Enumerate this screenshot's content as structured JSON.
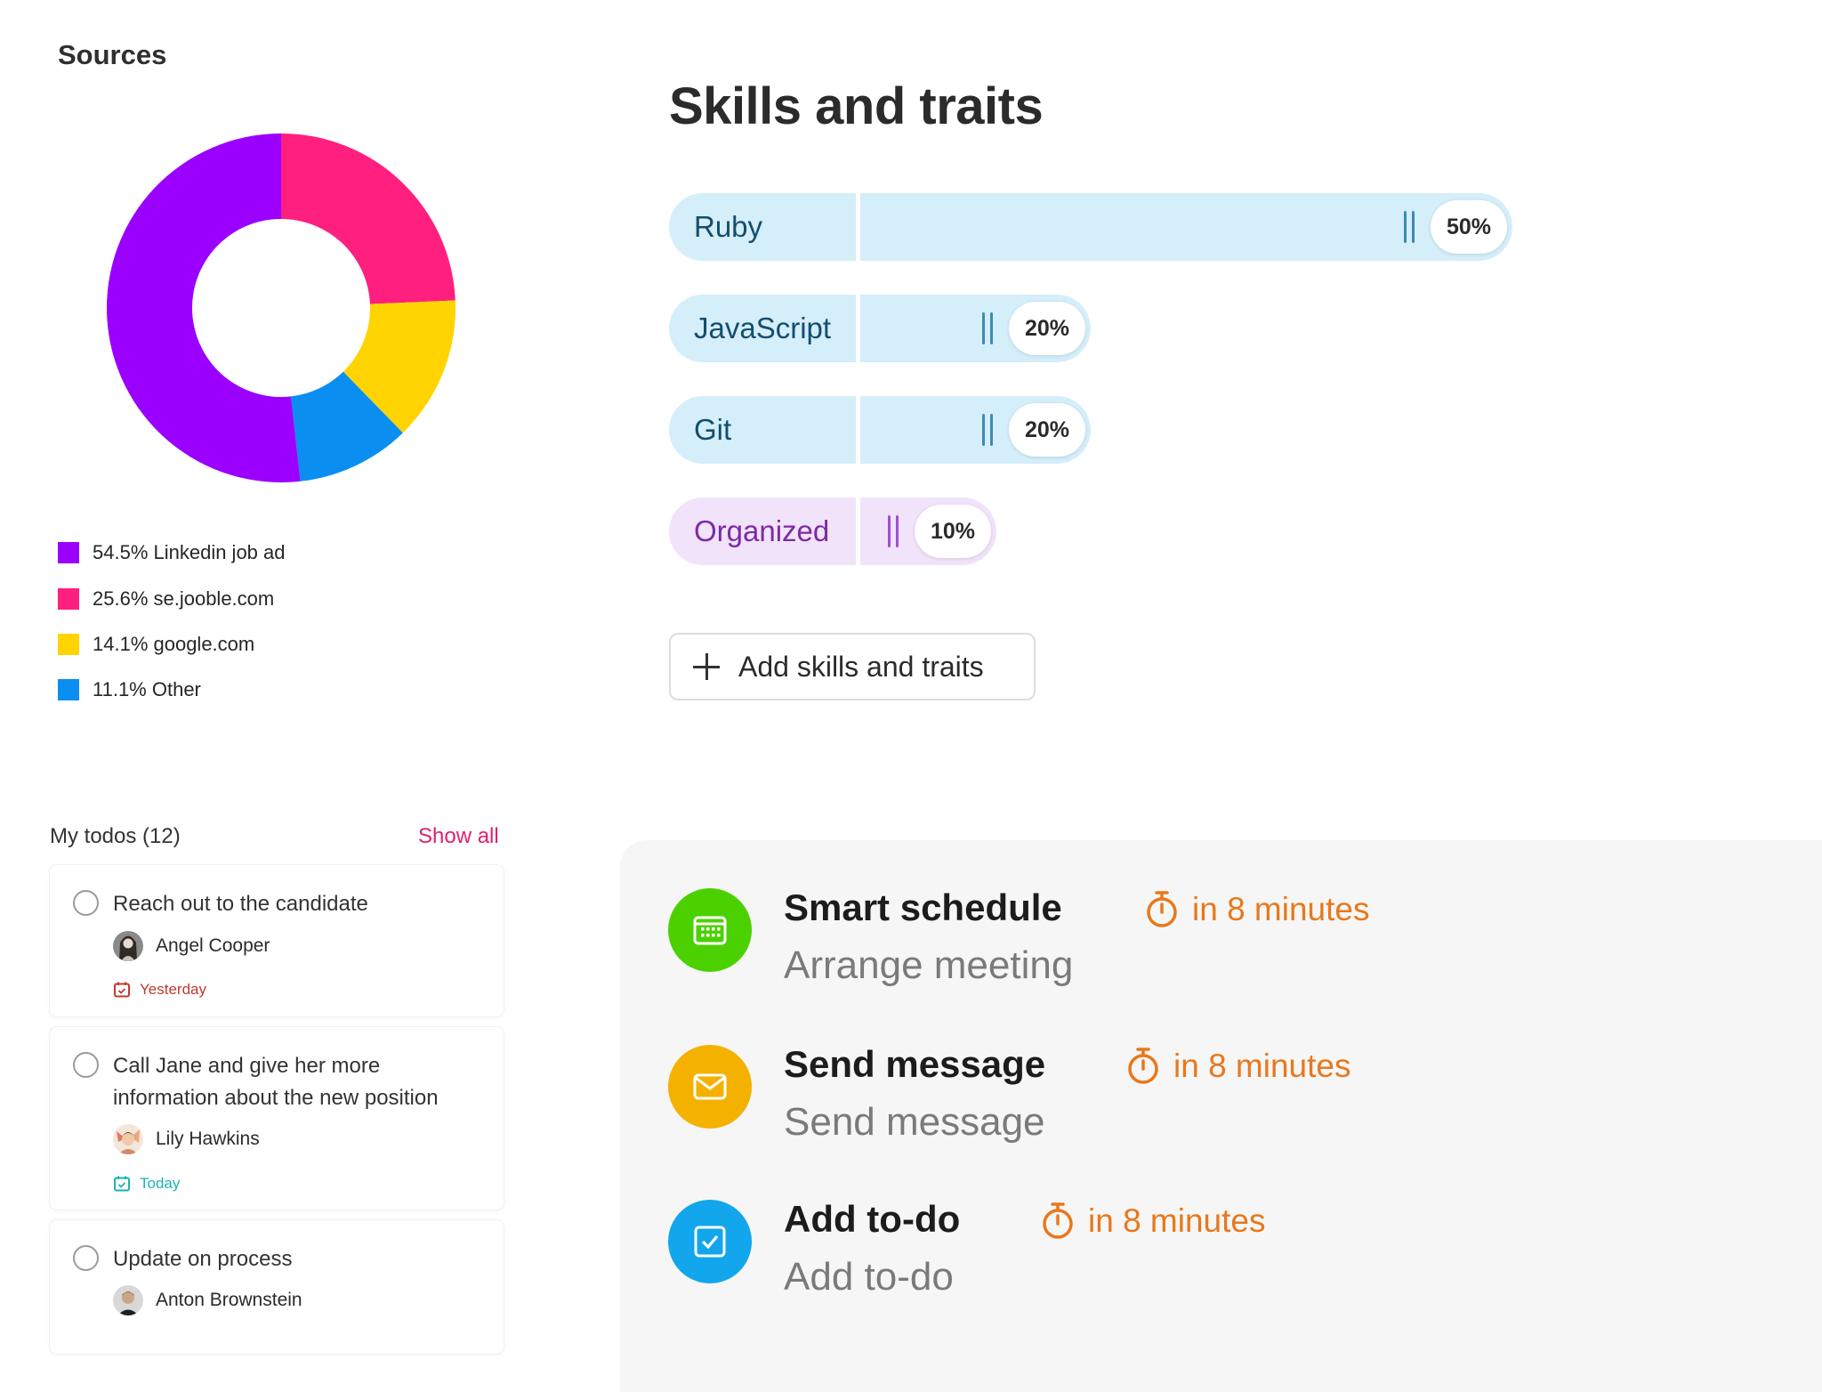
{
  "sources": {
    "title": "Sources",
    "legend": [
      {
        "label": "54.5% Linkedin job ad",
        "color": "#9b00ff"
      },
      {
        "label": "25.6% se.jooble.com",
        "color": "#ff1f7f"
      },
      {
        "label": "14.1% google.com",
        "color": "#ffd400"
      },
      {
        "label": "11.1% Other",
        "color": "#0a8ef0"
      }
    ]
  },
  "chart_data": {
    "type": "pie",
    "title": "Sources",
    "donut": true,
    "categories": [
      "Linkedin job ad",
      "se.jooble.com",
      "google.com",
      "Other"
    ],
    "values": [
      54.5,
      25.6,
      14.1,
      11.1
    ],
    "colors": [
      "#9b00ff",
      "#ff1f7f",
      "#ffd400",
      "#0a8ef0"
    ],
    "legend": "bottom"
  },
  "skills": {
    "title": "Skills and traits",
    "items": [
      {
        "name": "Ruby",
        "percent": "50%",
        "value": 50,
        "kind": "skill"
      },
      {
        "name": "JavaScript",
        "percent": "20%",
        "value": 20,
        "kind": "skill"
      },
      {
        "name": "Git",
        "percent": "20%",
        "value": 20,
        "kind": "skill"
      },
      {
        "name": "Organized",
        "percent": "10%",
        "value": 10,
        "kind": "trait"
      }
    ],
    "add_label": "Add skills and traits"
  },
  "todos": {
    "title": "My todos (12)",
    "show_all": "Show all",
    "items": [
      {
        "text": "Reach out to the candidate",
        "person": "Angel Cooper",
        "due": "Yesterday",
        "due_color": "#c0392b"
      },
      {
        "text": "Call Jane and give her more information about the new position",
        "person": "Lily Hawkins",
        "due": "Today",
        "due_color": "#19b3b3"
      },
      {
        "text": "Update on process",
        "person": "Anton Brownstein",
        "due": "",
        "due_color": ""
      }
    ]
  },
  "actions": {
    "items": [
      {
        "title": "Smart schedule",
        "timer": "in 8 minutes",
        "subtitle": "Arrange meeting",
        "icon": "calendar-icon",
        "color": "#4cd100"
      },
      {
        "title": "Send message",
        "timer": "in 8 minutes",
        "subtitle": "Send message",
        "icon": "envelope-icon",
        "color": "#f4b100"
      },
      {
        "title": "Add to-do",
        "timer": "in 8 minutes",
        "subtitle": "Add to-do",
        "icon": "checkbox-icon",
        "color": "#12a6ec"
      }
    ],
    "timer_color": "#e8781c"
  }
}
